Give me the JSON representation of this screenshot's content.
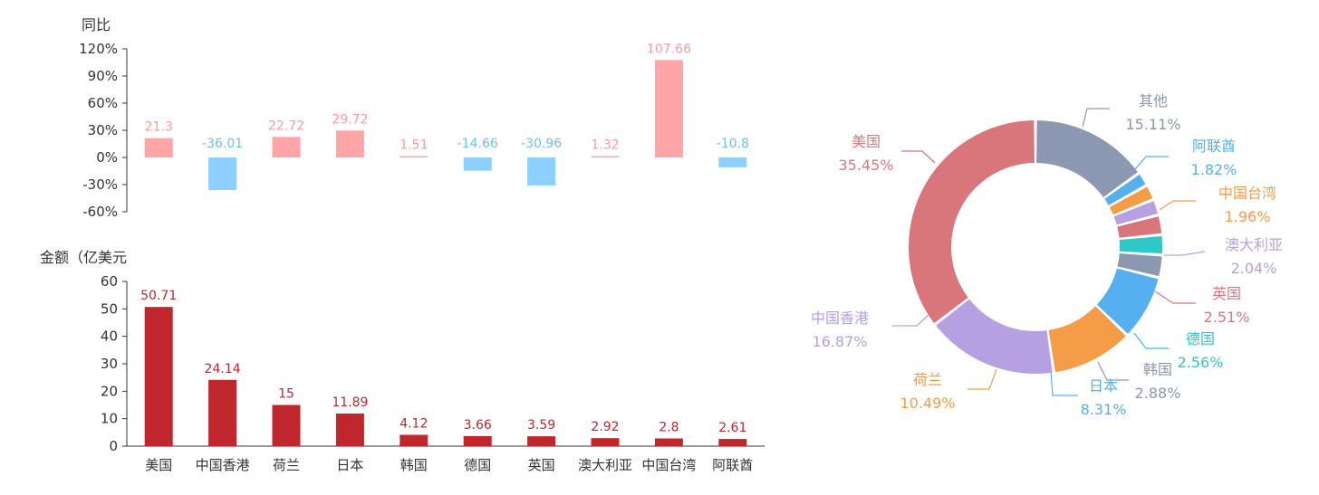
{
  "charts": {
    "yoy": {
      "ylabel": "同比",
      "y_ticks": [
        "120%",
        "90%",
        "60%",
        "30%",
        "0%",
        "-30%",
        "-60%"
      ]
    },
    "amount": {
      "ylabel": "金额（亿美元",
      "y_ticks": [
        "60",
        "50",
        "40",
        "30",
        "20",
        "10",
        "0"
      ]
    }
  },
  "chart_data": [
    {
      "type": "bar",
      "ylabel": "同比",
      "ylim": [
        -60,
        120
      ],
      "y_unit": "%",
      "categories": [
        "美国",
        "中国香港",
        "荷兰",
        "日本",
        "韩国",
        "德国",
        "英国",
        "澳大利亚",
        "中国台湾",
        "阿联酋"
      ],
      "values": [
        21.3,
        -36.01,
        22.72,
        29.72,
        1.51,
        -14.66,
        -30.96,
        1.32,
        107.66,
        -10.8
      ],
      "value_labels": [
        "21.3",
        "-36.01",
        "22.72",
        "29.72",
        "1.51",
        "-14.66",
        "-30.96",
        "1.32",
        "107.66",
        "-10.8"
      ],
      "colors": {
        "positive": "#ffa5a8",
        "negative": "#8dd0ff",
        "positive_label": "#ff9aa0",
        "negative_label": "#6cc0f5"
      }
    },
    {
      "type": "bar",
      "ylabel": "金额（亿美元",
      "ylim": [
        0,
        60
      ],
      "categories": [
        "美国",
        "中国香港",
        "荷兰",
        "日本",
        "韩国",
        "德国",
        "英国",
        "澳大利亚",
        "中国台湾",
        "阿联酋"
      ],
      "values": [
        50.71,
        24.14,
        15,
        11.89,
        4.12,
        3.66,
        3.59,
        2.92,
        2.8,
        2.61
      ],
      "value_labels": [
        "50.71",
        "24.14",
        "15",
        "11.89",
        "4.12",
        "3.66",
        "3.59",
        "2.92",
        "2.8",
        "2.61"
      ],
      "colors": {
        "bar": "#c0272d",
        "label": "#c0272d"
      }
    },
    {
      "type": "pie",
      "donut": true,
      "slices": [
        {
          "name": "其他",
          "value": 15.11,
          "pct_label": "15.11%",
          "color": "#8c97b2",
          "label_color": "#8c97b2"
        },
        {
          "name": "阿联酋",
          "value": 1.82,
          "pct_label": "1.82%",
          "color": "#56b0ef",
          "label_color": "#56b0ef"
        },
        {
          "name": "中国台湾",
          "value": 1.96,
          "pct_label": "1.96%",
          "color": "#f59c48",
          "label_color": "#f59c48"
        },
        {
          "name": "澳大利亚",
          "value": 2.04,
          "pct_label": "2.04%",
          "color": "#b6a0e2",
          "label_color": "#b6a0e2"
        },
        {
          "name": "英国",
          "value": 2.51,
          "pct_label": "2.51%",
          "color": "#d9767c",
          "label_color": "#d9767c"
        },
        {
          "name": "德国",
          "value": 2.56,
          "pct_label": "2.56%",
          "color": "#2ec8c8",
          "label_color": "#2ec8c8"
        },
        {
          "name": "韩国",
          "value": 2.88,
          "pct_label": "2.88%",
          "color": "#8c97b2",
          "label_color": "#8c97b2"
        },
        {
          "name": "日本",
          "value": 8.31,
          "pct_label": "8.31%",
          "color": "#56b0ef",
          "label_color": "#56b0ef"
        },
        {
          "name": "荷兰",
          "value": 10.49,
          "pct_label": "10.49%",
          "color": "#f59c48",
          "label_color": "#f59c48"
        },
        {
          "name": "中国香港",
          "value": 16.87,
          "pct_label": "16.87%",
          "color": "#b6a0e2",
          "label_color": "#b6a0e2"
        },
        {
          "name": "美国",
          "value": 35.45,
          "pct_label": "35.45%",
          "color": "#d9767c",
          "label_color": "#d9767c"
        }
      ]
    }
  ]
}
